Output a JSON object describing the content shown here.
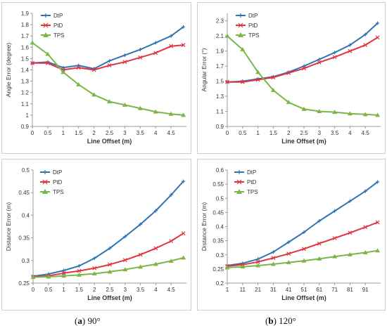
{
  "captions": [
    {
      "letter": "a",
      "text": "90°"
    },
    {
      "letter": "b",
      "text": "120°"
    }
  ],
  "colors": {
    "DtP": "#2e75b6",
    "PtD": "#e0343e",
    "TPS": "#7ab648"
  },
  "chart_data": [
    {
      "type": "line",
      "title": "",
      "xlabel": "Line Offset (m)",
      "ylabel": "Angle Error (degree)",
      "xlim": [
        0,
        5.0
      ],
      "ylim": [
        0.9,
        1.9
      ],
      "x_ticks": [
        "0",
        "0.5",
        "1",
        "1.5",
        "2",
        "2.5",
        "3",
        "3.5",
        "4",
        "4.5"
      ],
      "x_tick_values": [
        0,
        0.5,
        1,
        1.5,
        2,
        2.5,
        3,
        3.5,
        4,
        4.5
      ],
      "y_ticks": [
        "0.9",
        "1",
        "1.1",
        "1.2",
        "1.3",
        "1.4",
        "1.5",
        "1.6",
        "1.7",
        "1.8",
        "1.9"
      ],
      "y_tick_values": [
        0.9,
        1.0,
        1.1,
        1.2,
        1.3,
        1.4,
        1.5,
        1.6,
        1.7,
        1.8,
        1.9
      ],
      "legend_position": "top-left",
      "series": [
        {
          "name": "DtP",
          "x": [
            0,
            0.5,
            1,
            1.5,
            2,
            2.5,
            3,
            3.5,
            4,
            4.5,
            4.9
          ],
          "values": [
            1.46,
            1.47,
            1.42,
            1.44,
            1.41,
            1.48,
            1.53,
            1.58,
            1.64,
            1.7,
            1.78
          ]
        },
        {
          "name": "PtD",
          "x": [
            0,
            0.5,
            1,
            1.5,
            2,
            2.5,
            3,
            3.5,
            4,
            4.5,
            4.9
          ],
          "values": [
            1.46,
            1.46,
            1.4,
            1.42,
            1.4,
            1.44,
            1.47,
            1.51,
            1.55,
            1.61,
            1.62
          ]
        },
        {
          "name": "TPS",
          "x": [
            0,
            0.5,
            1,
            1.5,
            2,
            2.5,
            3,
            3.5,
            4,
            4.5,
            4.9
          ],
          "values": [
            1.64,
            1.54,
            1.38,
            1.27,
            1.18,
            1.12,
            1.09,
            1.06,
            1.03,
            1.01,
            1.0
          ]
        }
      ]
    },
    {
      "type": "line",
      "title": "",
      "xlabel": "Line Offset (m)",
      "ylabel": "Angular Error (°)",
      "xlim": [
        0,
        5.0
      ],
      "ylim": [
        0.9,
        2.4
      ],
      "x_ticks": [
        "0",
        "0.5",
        "1",
        "1.5",
        "2",
        "2.5",
        "3",
        "3.5",
        "4",
        "4.5"
      ],
      "x_tick_values": [
        0,
        0.5,
        1,
        1.5,
        2,
        2.5,
        3,
        3.5,
        4,
        4.5
      ],
      "y_ticks": [
        "0.9",
        "1.1",
        "1.3",
        "1.5",
        "1.7",
        "1.9",
        "2.1",
        "2.3"
      ],
      "y_tick_values": [
        0.9,
        1.1,
        1.3,
        1.5,
        1.7,
        1.9,
        2.1,
        2.3
      ],
      "legend_position": "top-left",
      "series": [
        {
          "name": "DtP",
          "x": [
            0,
            0.5,
            1,
            1.5,
            2,
            2.5,
            3,
            3.5,
            4,
            4.5,
            4.9
          ],
          "values": [
            1.49,
            1.5,
            1.53,
            1.56,
            1.62,
            1.7,
            1.79,
            1.88,
            1.98,
            2.12,
            2.27
          ]
        },
        {
          "name": "PtD",
          "x": [
            0,
            0.5,
            1,
            1.5,
            2,
            2.5,
            3,
            3.5,
            4,
            4.5,
            4.9
          ],
          "values": [
            1.49,
            1.49,
            1.52,
            1.55,
            1.61,
            1.67,
            1.75,
            1.82,
            1.9,
            1.98,
            2.08
          ]
        },
        {
          "name": "TPS",
          "x": [
            0,
            0.5,
            1,
            1.5,
            2,
            2.5,
            3,
            3.5,
            4,
            4.5,
            4.9
          ],
          "values": [
            2.1,
            1.92,
            1.62,
            1.38,
            1.22,
            1.13,
            1.1,
            1.09,
            1.07,
            1.06,
            1.05
          ]
        }
      ]
    },
    {
      "type": "line",
      "title": "",
      "xlabel": "Line Offset (m)",
      "ylabel": "Distance Error (m)",
      "xlim": [
        0,
        5.0
      ],
      "ylim": [
        0.25,
        0.5
      ],
      "x_ticks": [
        "0",
        "0.5",
        "1",
        "1.5",
        "2",
        "2.5",
        "3",
        "3.5",
        "4",
        "4.5"
      ],
      "x_tick_values": [
        0,
        0.5,
        1,
        1.5,
        2,
        2.5,
        3,
        3.5,
        4,
        4.5
      ],
      "y_ticks": [
        "0.25",
        "0.3",
        "0.35",
        "0.4",
        "0.45",
        "0.5"
      ],
      "y_tick_values": [
        0.25,
        0.3,
        0.35,
        0.4,
        0.45,
        0.5
      ],
      "legend_position": "top-right",
      "series": [
        {
          "name": "DtP",
          "x": [
            0,
            0.5,
            1,
            1.5,
            2,
            2.5,
            3,
            3.5,
            4,
            4.5,
            4.9
          ],
          "values": [
            0.265,
            0.27,
            0.278,
            0.288,
            0.305,
            0.327,
            0.353,
            0.38,
            0.41,
            0.445,
            0.475
          ]
        },
        {
          "name": "PtD",
          "x": [
            0,
            0.5,
            1,
            1.5,
            2,
            2.5,
            3,
            3.5,
            4,
            4.5,
            4.9
          ],
          "values": [
            0.264,
            0.266,
            0.272,
            0.277,
            0.283,
            0.291,
            0.301,
            0.313,
            0.327,
            0.343,
            0.36
          ]
        },
        {
          "name": "TPS",
          "x": [
            0,
            0.5,
            1,
            1.5,
            2,
            2.5,
            3,
            3.5,
            4,
            4.5,
            4.9
          ],
          "values": [
            0.263,
            0.264,
            0.266,
            0.268,
            0.271,
            0.275,
            0.28,
            0.286,
            0.292,
            0.299,
            0.306
          ]
        }
      ]
    },
    {
      "type": "line",
      "title": "",
      "xlabel": "Line Offset (m)",
      "ylabel": "Distance Error (m)",
      "xlim": [
        1,
        101
      ],
      "ylim": [
        0.2,
        0.6
      ],
      "x_ticks": [
        "1",
        "11",
        "21",
        "31",
        "41",
        "51",
        "61",
        "71",
        "81",
        "91"
      ],
      "x_tick_values": [
        1,
        11,
        21,
        31,
        41,
        51,
        61,
        71,
        81,
        91
      ],
      "y_ticks": [
        "0.2",
        "0.25",
        "0.3",
        "0.35",
        "0.4",
        "0.45",
        "0.5",
        "0.55",
        "0.6"
      ],
      "y_tick_values": [
        0.2,
        0.25,
        0.3,
        0.35,
        0.4,
        0.45,
        0.5,
        0.55,
        0.6
      ],
      "legend_position": "top-right",
      "series": [
        {
          "name": "DtP",
          "x": [
            1,
            11,
            21,
            31,
            41,
            51,
            61,
            71,
            81,
            91,
            99
          ],
          "values": [
            0.262,
            0.27,
            0.285,
            0.31,
            0.345,
            0.38,
            0.42,
            0.455,
            0.49,
            0.525,
            0.558
          ]
        },
        {
          "name": "PtD",
          "x": [
            1,
            11,
            21,
            31,
            41,
            51,
            61,
            71,
            81,
            91,
            99
          ],
          "values": [
            0.26,
            0.265,
            0.275,
            0.289,
            0.304,
            0.321,
            0.34,
            0.359,
            0.378,
            0.398,
            0.415
          ]
        },
        {
          "name": "TPS",
          "x": [
            1,
            11,
            21,
            31,
            41,
            51,
            61,
            71,
            81,
            91,
            99
          ],
          "values": [
            0.255,
            0.258,
            0.262,
            0.267,
            0.273,
            0.279,
            0.286,
            0.294,
            0.301,
            0.308,
            0.315
          ]
        }
      ]
    }
  ]
}
